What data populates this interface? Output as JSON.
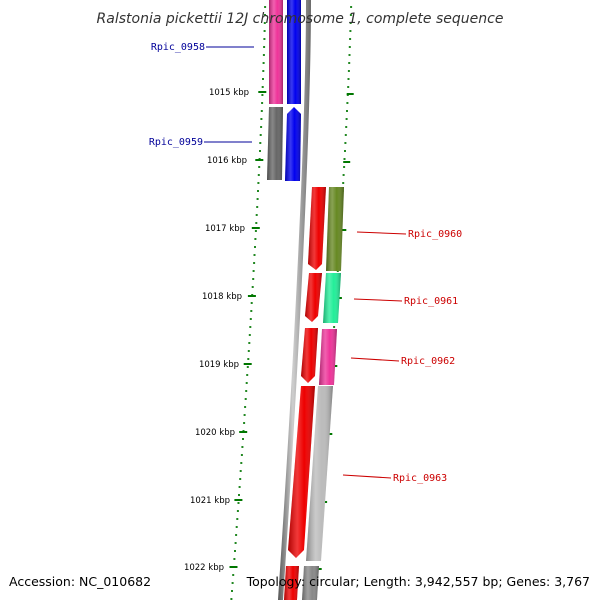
{
  "title": "Ralstonia pickettii 12J chromosome 1, complete sequence",
  "footer": {
    "accession": "Accession: NC_010682",
    "topology": "Topology: circular; Length: 3,942,557 bp; Genes: 3,767"
  },
  "scale": {
    "ticks": [
      {
        "label": "1015 kbp"
      },
      {
        "label": "1016 kbp"
      },
      {
        "label": "1017 kbp"
      },
      {
        "label": "1018 kbp"
      },
      {
        "label": "1019 kbp"
      },
      {
        "label": "1020 kbp"
      },
      {
        "label": "1021 kbp"
      },
      {
        "label": "1022 kbp"
      }
    ]
  },
  "genes": [
    {
      "name": "Rpic_0958",
      "color": "#000099",
      "track_color": "#ee3399",
      "cds_color": "#0000ee"
    },
    {
      "name": "Rpic_0959",
      "color": "#000099",
      "track_color": "#666666",
      "cds_color": "#0000ee"
    },
    {
      "name": "Rpic_0960",
      "color": "#cc0000",
      "track_color": "#668822",
      "cds_color": "#ee0000"
    },
    {
      "name": "Rpic_0961",
      "color": "#cc0000",
      "track_color": "#22ee99",
      "cds_color": "#ee0000"
    },
    {
      "name": "Rpic_0962",
      "color": "#cc0000",
      "track_color": "#ee3399",
      "cds_color": "#ee0000"
    },
    {
      "name": "Rpic_0963",
      "color": "#cc0000",
      "track_color": "#bbbbbb",
      "cds_color": "#ee0000"
    }
  ],
  "colors": {
    "backbone": "#888888",
    "tick": "#007700",
    "minor_tick": "#228822"
  }
}
